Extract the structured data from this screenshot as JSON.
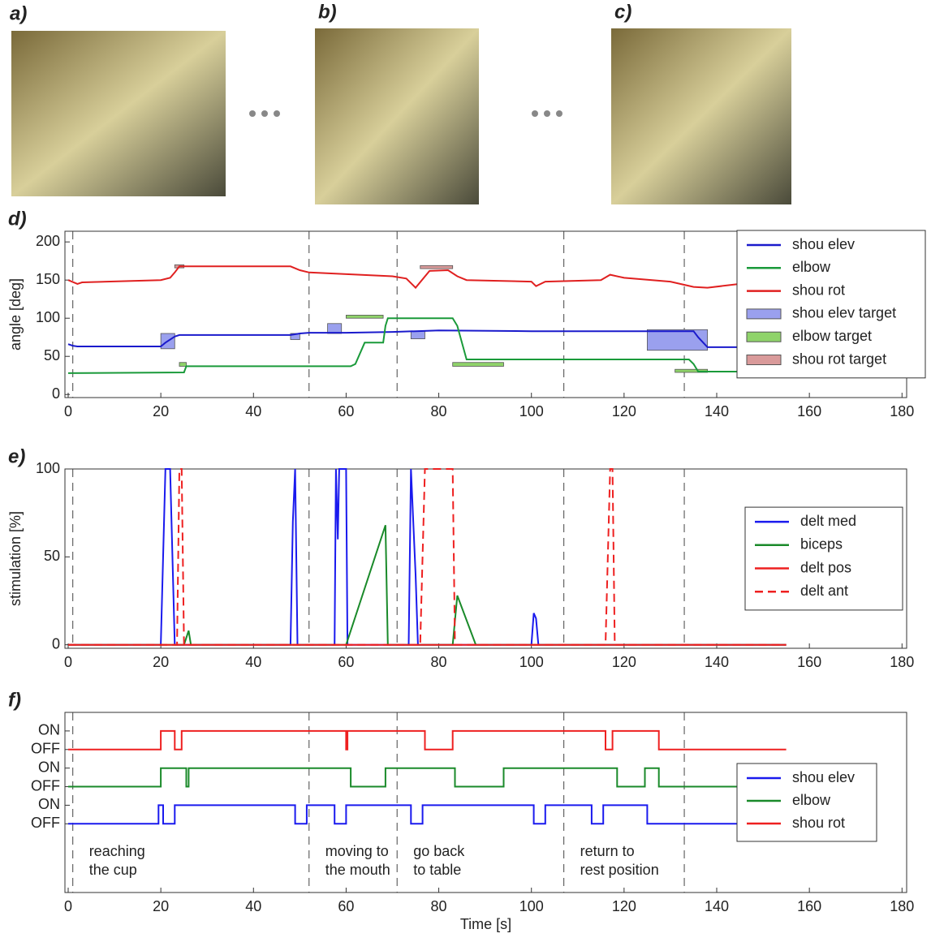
{
  "panels": {
    "labels": [
      "a)",
      "b)",
      "c)"
    ]
  },
  "phase_lines": [
    1,
    52,
    71,
    107,
    133
  ],
  "chart_data": [
    {
      "type": "line",
      "panel": "d)",
      "ylabel": "angle [deg]",
      "xlim": [
        -0.7,
        181
      ],
      "xticks": [
        0,
        20,
        40,
        60,
        80,
        100,
        120,
        140,
        160,
        180
      ],
      "ylim": [
        -4,
        214
      ],
      "yticks": [
        0,
        50,
        100,
        150,
        200
      ],
      "legend": "upper right",
      "series": [
        {
          "name": "shou elev",
          "color": "#1a1acc",
          "x": [
            0,
            1,
            2,
            20,
            21,
            23,
            24,
            48,
            50,
            52,
            60,
            70,
            75,
            80,
            100,
            120,
            130,
            135,
            136,
            138,
            145,
            155
          ],
          "values": [
            66,
            64,
            63,
            63,
            68,
            76,
            78,
            78,
            80,
            81,
            81,
            82,
            83,
            84,
            83,
            83,
            83,
            83,
            75,
            62,
            62,
            62
          ]
        },
        {
          "name": "elbow",
          "color": "#1a9a3a",
          "x": [
            0,
            25,
            25.5,
            61,
            62,
            64,
            68,
            68.5,
            69,
            83,
            84,
            86,
            100,
            134,
            135,
            136,
            155
          ],
          "values": [
            28,
            29,
            37,
            37,
            40,
            68,
            68,
            90,
            100,
            100,
            90,
            46,
            46,
            46,
            40,
            30,
            30
          ]
        },
        {
          "name": "shou rot",
          "color": "#e02020",
          "x": [
            0,
            2,
            3,
            20,
            22,
            23,
            24,
            48,
            50,
            52,
            70,
            73,
            75,
            78,
            82,
            84,
            86,
            100,
            101,
            103,
            115,
            117,
            120,
            130,
            135,
            138,
            145
          ],
          "values": [
            150,
            145,
            147,
            150,
            153,
            160,
            168,
            168,
            163,
            160,
            155,
            152,
            140,
            162,
            163,
            155,
            150,
            148,
            142,
            148,
            150,
            157,
            153,
            148,
            141,
            140,
            145
          ]
        }
      ],
      "targets": [
        {
          "name": "shou elev target",
          "color": "#9aa0ee",
          "boxes": [
            [
              20,
              23,
              60,
              80
            ],
            [
              48,
              50,
              72,
              80
            ],
            [
              56,
              59,
              80,
              93
            ],
            [
              74,
              77,
              73,
              83
            ],
            [
              125,
              138,
              58,
              85
            ]
          ]
        },
        {
          "name": "elbow target",
          "color": "#8fd36a",
          "boxes": [
            [
              24,
              25.5,
              37,
              42
            ],
            [
              60,
              68,
              100,
              104
            ],
            [
              83,
              94,
              37,
              42
            ],
            [
              131,
              138,
              29,
              33
            ]
          ]
        },
        {
          "name": "shou rot target",
          "color": "#d99a9a",
          "boxes": [
            [
              23,
              25,
              166,
              170
            ],
            [
              76,
              83,
              165,
              169
            ]
          ]
        }
      ]
    },
    {
      "type": "line",
      "panel": "e)",
      "ylabel": "stimulation [%]",
      "xlim": [
        -0.7,
        181
      ],
      "xticks": [
        0,
        20,
        40,
        60,
        80,
        100,
        120,
        140,
        160,
        180
      ],
      "ylim": [
        -2,
        100
      ],
      "yticks": [
        0,
        50,
        100
      ],
      "legend": "center right",
      "series": [
        {
          "name": "delt med",
          "color": "#1a1aee",
          "x": [
            0,
            20,
            21,
            22,
            23,
            48,
            48.5,
            49,
            49.5,
            57.5,
            57.8,
            58.2,
            58.5,
            59,
            60,
            60.3,
            73.5,
            74,
            75,
            75.5,
            100,
            100.5,
            101,
            101.5,
            155
          ],
          "values": [
            0,
            0,
            100,
            100,
            0,
            0,
            70,
            100,
            0,
            0,
            100,
            60,
            100,
            100,
            100,
            0,
            0,
            100,
            40,
            0,
            0,
            18,
            15,
            0,
            0
          ]
        },
        {
          "name": "biceps",
          "color": "#1a8a2a",
          "x": [
            0,
            25,
            26,
            26.5,
            60,
            68.5,
            69,
            83,
            84,
            88,
            155
          ],
          "values": [
            0,
            0,
            8,
            0,
            0,
            68,
            0,
            0,
            28,
            0,
            0
          ]
        },
        {
          "name": "delt pos",
          "color": "#ee2020",
          "x": [
            0,
            155
          ],
          "values": [
            0,
            0
          ]
        },
        {
          "name": "delt ant",
          "color": "#ee2020",
          "dash": true,
          "x": [
            0,
            23.5,
            24,
            24.5,
            25,
            76,
            77,
            77.5,
            82.5,
            83,
            83.5,
            116,
            117,
            117.5,
            118,
            155
          ],
          "values": [
            0,
            0,
            100,
            100,
            0,
            0,
            100,
            100,
            100,
            100,
            0,
            0,
            100,
            100,
            0,
            0
          ]
        }
      ]
    },
    {
      "type": "line",
      "panel": "f)",
      "xlabel": "Time [s]",
      "xlim": [
        -0.7,
        181
      ],
      "xticks": [
        0,
        20,
        40,
        60,
        80,
        100,
        120,
        140,
        160,
        180
      ],
      "ylim": [
        -3.7,
        6
      ],
      "yticks": [
        {
          "value": 0,
          "label": "OFF"
        },
        {
          "value": 1,
          "label": "ON"
        },
        {
          "value": 2,
          "label": "OFF"
        },
        {
          "value": 3,
          "label": "ON"
        },
        {
          "value": 4,
          "label": "OFF"
        },
        {
          "value": 5,
          "label": "ON"
        }
      ],
      "legend": "center right",
      "annotations": [
        [
          "reaching",
          "the cup"
        ],
        [
          "moving to",
          "the mouth"
        ],
        [
          "go back",
          "to table"
        ],
        [
          "return to",
          "rest position"
        ]
      ],
      "series": [
        {
          "name": "shou elev",
          "color": "#1a1aee",
          "x": [
            0,
            19.5,
            19.5,
            20.5,
            20.5,
            23,
            23,
            49,
            49,
            51.5,
            51.5,
            57.5,
            57.5,
            60,
            60,
            74,
            74,
            76.5,
            76.5,
            100.5,
            100.5,
            103,
            103,
            113,
            113,
            115.5,
            115.5,
            125,
            125,
            155
          ],
          "values": [
            0,
            0,
            1,
            1,
            0,
            0,
            1,
            1,
            0,
            0,
            1,
            1,
            0,
            0,
            1,
            1,
            0,
            0,
            1,
            1,
            0,
            0,
            1,
            1,
            0,
            0,
            1,
            1,
            0,
            0
          ]
        },
        {
          "name": "elbow",
          "color": "#1a8a2a",
          "x": [
            0,
            20,
            20,
            25.5,
            25.5,
            26,
            26,
            61,
            61,
            68.5,
            68.5,
            83.5,
            83.5,
            94,
            94,
            118.5,
            118.5,
            124.5,
            124.5,
            127.5,
            127.5,
            155
          ],
          "values": [
            2,
            2,
            3,
            3,
            2,
            2,
            3,
            3,
            2,
            2,
            3,
            3,
            2,
            2,
            3,
            3,
            2,
            2,
            3,
            3,
            2,
            2
          ]
        },
        {
          "name": "shou rot",
          "color": "#ee2020",
          "x": [
            0,
            20,
            20,
            23,
            23,
            24.5,
            24.5,
            60,
            60,
            60.3,
            60.3,
            77,
            77,
            83,
            83,
            116,
            116,
            117.5,
            117.5,
            127.5,
            127.5,
            155
          ],
          "values": [
            4,
            4,
            5,
            5,
            4,
            4,
            5,
            5,
            4,
            4,
            5,
            5,
            4,
            4,
            5,
            5,
            4,
            4,
            5,
            5,
            4,
            4
          ]
        }
      ]
    }
  ]
}
